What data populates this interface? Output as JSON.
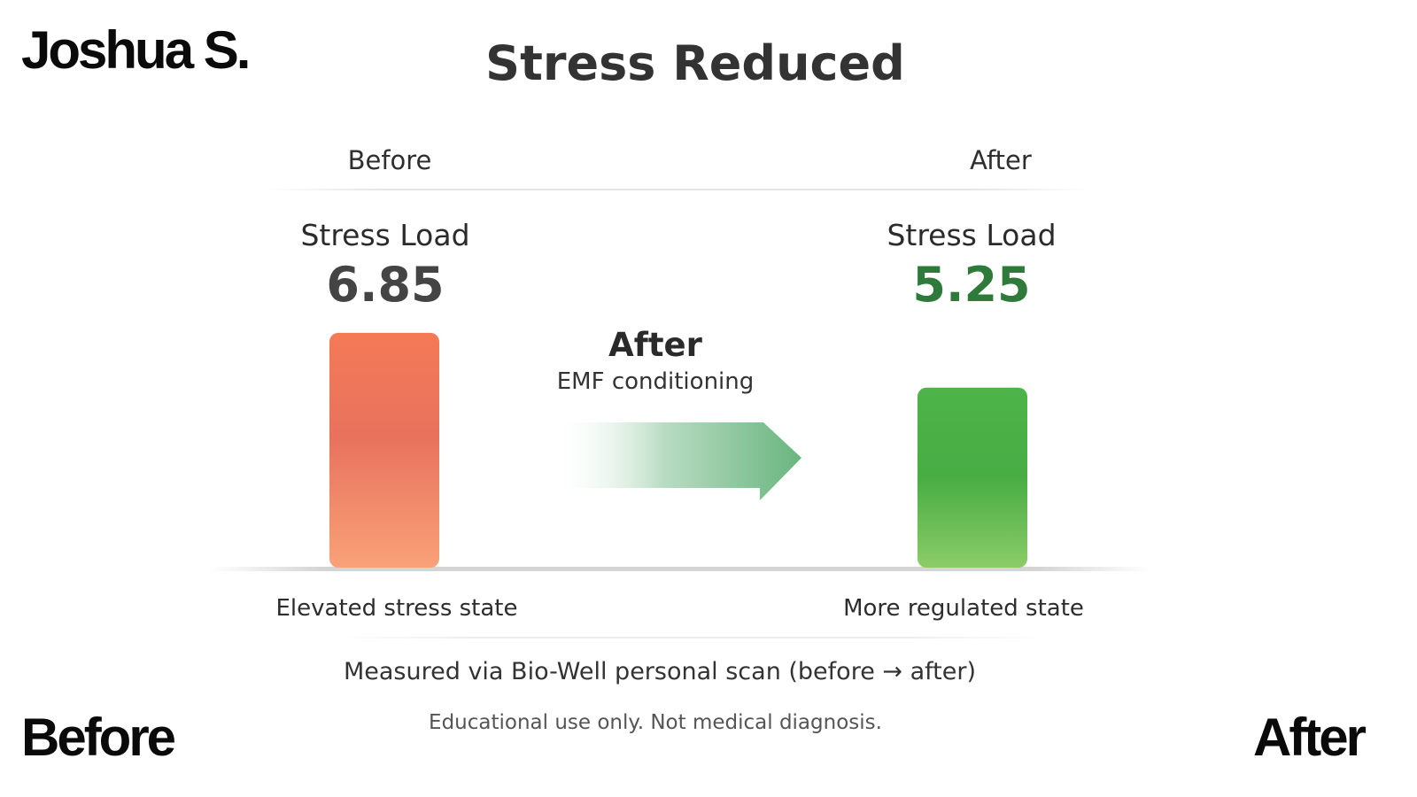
{
  "brand": {
    "name": "Joshua S."
  },
  "corner_labels": {
    "before": "Before",
    "after": "After"
  },
  "chart_data": {
    "type": "bar",
    "title": "Stress Reduced",
    "categories": [
      "Before",
      "After"
    ],
    "metric_label": "Stress Load",
    "values": [
      6.85,
      5.25
    ],
    "value_labels": [
      "6.85",
      "5.25"
    ],
    "state_labels": [
      "Elevated stress state",
      "More regulated state"
    ],
    "transition": {
      "title": "After",
      "subtitle": "EMF conditioning"
    },
    "colors": {
      "before": "#f07a5a",
      "after": "#4fb04a",
      "after_value_text": "#2e7a3a",
      "arrow": "#6fb887"
    },
    "ylim": [
      0,
      8.5
    ],
    "grid": false
  },
  "footer": {
    "measured": "Measured via Bio-Well personal scan (before → after)",
    "disclaimer": "Educational use only. Not medical diagnosis."
  }
}
